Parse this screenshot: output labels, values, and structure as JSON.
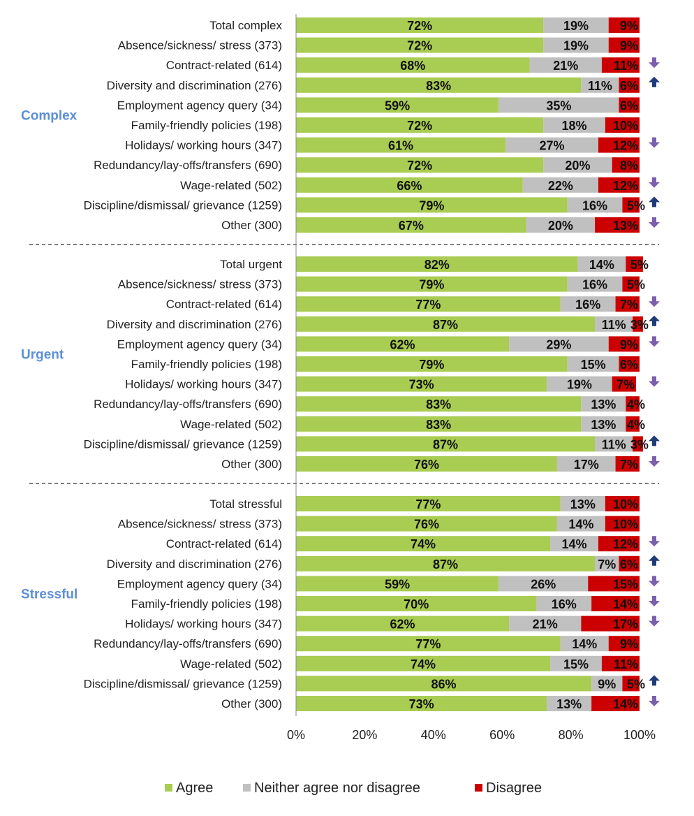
{
  "chart_data": {
    "type": "bar",
    "orientation": "horizontal",
    "stacked": true,
    "xlim": [
      0,
      100
    ],
    "x_ticks": [
      "0%",
      "20%",
      "40%",
      "60%",
      "80%",
      "100%"
    ],
    "legend_position": "bottom",
    "colors": {
      "Agree": "#a9cc52",
      "Neither agree nor disagree": "#c0c0c0",
      "Disagree": "#cc0000",
      "arrow_down": "#7b5fae",
      "arrow_up": "#1f3b7a",
      "group_label": "#5b8fd6"
    },
    "series_names": [
      "Agree",
      "Neither agree nor disagree",
      "Disagree"
    ],
    "groups": [
      {
        "name": "Complex",
        "rows": [
          {
            "label": "Total complex",
            "values": [
              72,
              19,
              9
            ],
            "arrow": ""
          },
          {
            "label": "Absence/sickness/ stress (373)",
            "values": [
              72,
              19,
              9
            ],
            "arrow": ""
          },
          {
            "label": "Contract-related (614)",
            "values": [
              68,
              21,
              11
            ],
            "arrow": "down"
          },
          {
            "label": "Diversity and discrimination (276)",
            "values": [
              83,
              11,
              6
            ],
            "arrow": "up"
          },
          {
            "label": "Employment agency query (34)",
            "values": [
              59,
              35,
              6
            ],
            "arrow": ""
          },
          {
            "label": "Family-friendly policies (198)",
            "values": [
              72,
              18,
              10
            ],
            "arrow": ""
          },
          {
            "label": "Holidays/ working hours (347)",
            "values": [
              61,
              27,
              12
            ],
            "arrow": "down"
          },
          {
            "label": "Redundancy/lay-offs/transfers (690)",
            "values": [
              72,
              20,
              8
            ],
            "arrow": ""
          },
          {
            "label": "Wage-related (502)",
            "values": [
              66,
              22,
              12
            ],
            "arrow": "down"
          },
          {
            "label": "Discipline/dismissal/ grievance (1259)",
            "values": [
              79,
              16,
              5
            ],
            "arrow": "up"
          },
          {
            "label": "Other (300)",
            "values": [
              67,
              20,
              13
            ],
            "arrow": "down"
          }
        ]
      },
      {
        "name": "Urgent",
        "rows": [
          {
            "label": "Total urgent",
            "values": [
              82,
              14,
              5
            ],
            "arrow": ""
          },
          {
            "label": "Absence/sickness/ stress (373)",
            "values": [
              79,
              16,
              5
            ],
            "arrow": ""
          },
          {
            "label": "Contract-related (614)",
            "values": [
              77,
              16,
              7
            ],
            "arrow": "down"
          },
          {
            "label": "Diversity and discrimination (276)",
            "values": [
              87,
              11,
              3
            ],
            "arrow": "up"
          },
          {
            "label": "Employment agency query (34)",
            "values": [
              62,
              29,
              9
            ],
            "arrow": "down"
          },
          {
            "label": "Family-friendly policies (198)",
            "values": [
              79,
              15,
              6
            ],
            "arrow": ""
          },
          {
            "label": "Holidays/ working hours (347)",
            "values": [
              73,
              19,
              7
            ],
            "arrow": "down"
          },
          {
            "label": "Redundancy/lay-offs/transfers (690)",
            "values": [
              83,
              13,
              4
            ],
            "arrow": ""
          },
          {
            "label": "Wage-related (502)",
            "values": [
              83,
              13,
              4
            ],
            "arrow": ""
          },
          {
            "label": "Discipline/dismissal/ grievance (1259)",
            "values": [
              87,
              11,
              3
            ],
            "arrow": "up"
          },
          {
            "label": "Other (300)",
            "values": [
              76,
              17,
              7
            ],
            "arrow": "down"
          }
        ]
      },
      {
        "name": "Stressful",
        "rows": [
          {
            "label": "Total stressful",
            "values": [
              77,
              13,
              10
            ],
            "arrow": ""
          },
          {
            "label": "Absence/sickness/ stress (373)",
            "values": [
              76,
              14,
              10
            ],
            "arrow": ""
          },
          {
            "label": "Contract-related (614)",
            "values": [
              74,
              14,
              12
            ],
            "arrow": "down"
          },
          {
            "label": "Diversity and discrimination (276)",
            "values": [
              87,
              7,
              6
            ],
            "arrow": "up"
          },
          {
            "label": "Employment agency query (34)",
            "values": [
              59,
              26,
              15
            ],
            "arrow": "down"
          },
          {
            "label": "Family-friendly policies (198)",
            "values": [
              70,
              16,
              14
            ],
            "arrow": "down"
          },
          {
            "label": "Holidays/ working hours (347)",
            "values": [
              62,
              21,
              17
            ],
            "arrow": "down"
          },
          {
            "label": "Redundancy/lay-offs/transfers (690)",
            "values": [
              77,
              14,
              9
            ],
            "arrow": ""
          },
          {
            "label": "Wage-related (502)",
            "values": [
              74,
              15,
              11
            ],
            "arrow": ""
          },
          {
            "label": "Discipline/dismissal/ grievance (1259)",
            "values": [
              86,
              9,
              5
            ],
            "arrow": "up"
          },
          {
            "label": "Other (300)",
            "values": [
              73,
              13,
              14
            ],
            "arrow": "down"
          }
        ]
      }
    ]
  }
}
